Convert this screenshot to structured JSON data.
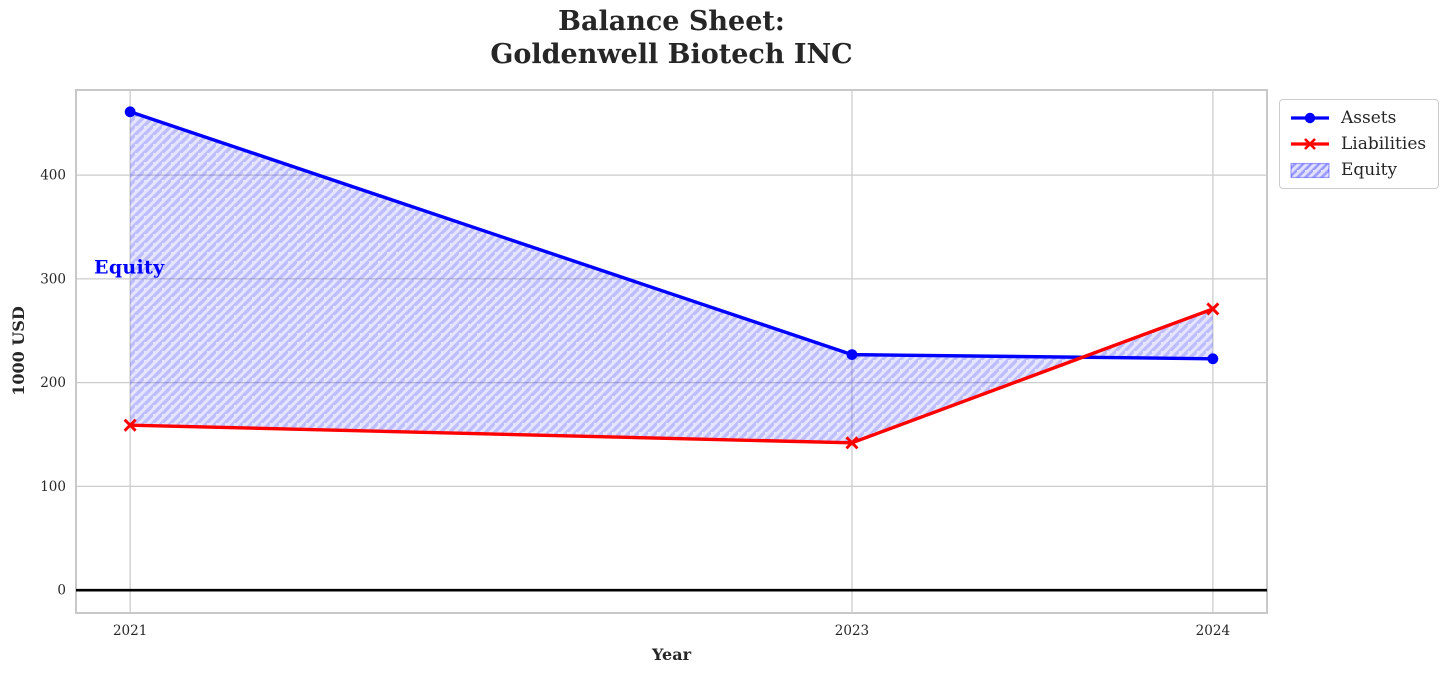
{
  "chart_data": {
    "type": "line",
    "title": "Balance Sheet:\nGoldenwell Biotech INC",
    "title_lines": [
      "Balance Sheet:",
      "Goldenwell Biotech INC"
    ],
    "xlabel": "Year",
    "ylabel": "1000 USD",
    "x": [
      2021,
      2023,
      2024
    ],
    "x_tick_labels": [
      "2021",
      "2023",
      "2024"
    ],
    "y_ticks": [
      0,
      100,
      200,
      300,
      400
    ],
    "y_tick_labels": [
      "0",
      "100",
      "200",
      "300",
      "400"
    ],
    "xlim": [
      2020.85,
      2024.15
    ],
    "ylim": [
      -22,
      482
    ],
    "grid": true,
    "series": [
      {
        "name": "Assets",
        "color": "#0000ff",
        "marker": "circle",
        "values": [
          461,
          227,
          223
        ]
      },
      {
        "name": "Liabilities",
        "color": "#ff0000",
        "marker": "x",
        "values": [
          159,
          142,
          271
        ]
      }
    ],
    "fill_between": {
      "label": "Equity",
      "between": [
        "Assets",
        "Liabilities"
      ],
      "equity_values": [
        302,
        85,
        -48
      ],
      "fill_color": "rgba(0,0,255,0.10)",
      "hatch": "/",
      "hatch_color": "rgba(0,0,255,0.17)"
    },
    "zero_line": {
      "y": 0,
      "color": "#000000"
    },
    "annotation": {
      "text": "Equity",
      "x": 2020.9,
      "y": 310,
      "color": "#0000ff"
    },
    "legend": {
      "position": "outside-right-top",
      "items": [
        {
          "label": "Assets",
          "swatch": "line-circle"
        },
        {
          "label": "Liabilities",
          "swatch": "line-x"
        },
        {
          "label": "Equity",
          "swatch": "hatched-patch"
        }
      ]
    },
    "colors": {
      "grid": "#cccccc",
      "plot_border": "#c8c8c8",
      "text": "#262626",
      "background": "#ffffff"
    }
  }
}
